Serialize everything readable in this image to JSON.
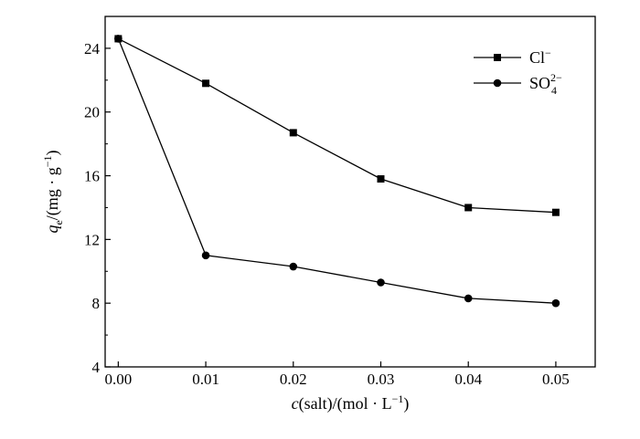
{
  "chart_data": {
    "type": "line",
    "x": [
      0.0,
      0.01,
      0.02,
      0.03,
      0.04,
      0.05
    ],
    "series": [
      {
        "name": "Cl⁻",
        "marker": "square",
        "values": [
          24.6,
          21.8,
          18.7,
          15.8,
          14.0,
          13.7
        ]
      },
      {
        "name": "SO₄²⁻",
        "marker": "circle",
        "values": [
          24.6,
          11.0,
          10.3,
          9.3,
          8.3,
          8.0
        ]
      }
    ],
    "xlabel": {
      "italic": "c",
      "rest": "(salt)/(mol · L",
      "sup": "−1",
      "close": ")"
    },
    "ylabel": {
      "italic": "q",
      "sub": "e",
      "rest": "/(mg · g",
      "sup": "−1",
      "close": ")"
    },
    "xticks": [
      "0.00",
      "0.01",
      "0.02",
      "0.03",
      "0.04",
      "0.05"
    ],
    "yticks": [
      "4",
      "8",
      "12",
      "16",
      "20",
      "24"
    ],
    "xlim": [
      -0.0015,
      0.0545
    ],
    "ylim": [
      4,
      26
    ],
    "legend": {
      "placement": "top-right",
      "items": [
        {
          "base": "Cl",
          "sup": "−",
          "sub": ""
        },
        {
          "base": "SO",
          "sup": "2−",
          "sub": "4"
        }
      ]
    },
    "grid": false
  }
}
